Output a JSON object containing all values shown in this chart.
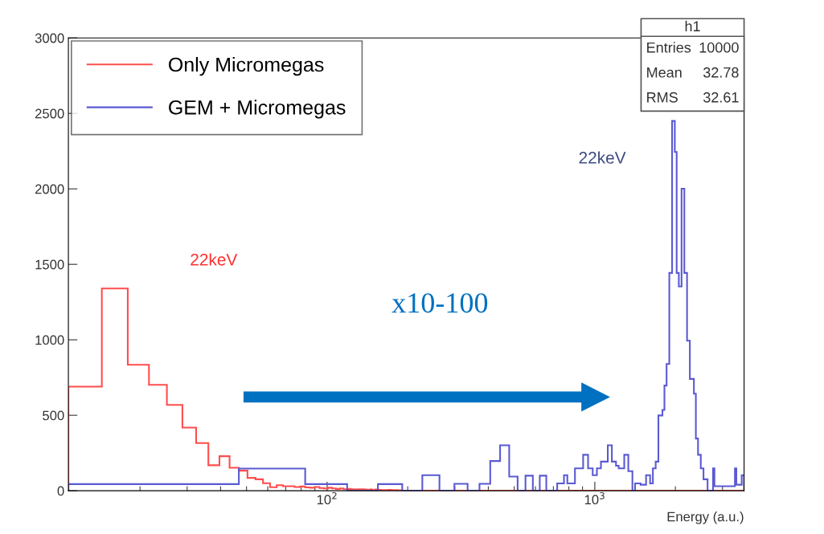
{
  "chart_data": {
    "type": "histogram",
    "xlabel": "Energy (a.u.)",
    "log": "x",
    "xlim": [
      10.8,
      3610.8
    ],
    "xticks": [
      {
        "value": 100,
        "label": "10$^{2}$"
      },
      {
        "value": 1000,
        "label": "10$^{3}$"
      }
    ],
    "ylim": [
      0,
      3000
    ],
    "yticks": [
      0,
      500,
      1000,
      1500,
      2000,
      2500,
      3000
    ],
    "grid": false,
    "legend": "top left",
    "bins": [
      10.8,
      14.4,
      18,
      21.6,
      25.2,
      28.8,
      32.4,
      36,
      39.6,
      43.2,
      46.8,
      50.4,
      54,
      57.6,
      61.2,
      64.8,
      68.4,
      72,
      75.6,
      79.2,
      82.8,
      86.4,
      90,
      93.6,
      97.2,
      100.8,
      104.4,
      108,
      111.6,
      115.2,
      118.8,
      122.4,
      126,
      129.6,
      133.2,
      136.8,
      140.4,
      144,
      147.6,
      151.2,
      154.8,
      158.4,
      162,
      165.6,
      169.2,
      172.8,
      176.4,
      180,
      183.6,
      187.2,
      190.8,
      226.8,
      262.8,
      298.8,
      334.8,
      370.8,
      406.8,
      442.8,
      478.8,
      514.8,
      550.8,
      586.8,
      622.8,
      658.8,
      723.6,
      767,
      789.6,
      843,
      904.6,
      943.6,
      982,
      1018,
      1054,
      1118,
      1158,
      1200,
      1228,
      1288,
      1334,
      1382,
      1414,
      1483,
      1554,
      1609,
      1648,
      1688,
      1728,
      1789,
      1820,
      1854,
      1898,
      1944,
      1990,
      2022,
      2060,
      2109,
      2160,
      2211,
      2265,
      2345,
      2385,
      2430,
      2488,
      2547,
      2638,
      2765,
      2798,
      3338,
      3378,
      3539,
      3610.8
    ],
    "series": [
      {
        "name": "Only Micromegas",
        "color": "#ff4d4d",
        "values": [
          690,
          1340,
          835,
          702,
          569,
          418,
          316,
          169,
          229,
          152,
          133,
          85,
          76,
          50,
          23,
          37,
          30,
          30,
          25,
          28,
          22,
          20,
          25,
          18,
          15,
          20,
          15,
          12,
          15,
          10,
          12,
          10,
          8,
          10,
          10,
          8,
          6,
          8,
          5,
          8,
          6,
          5,
          5,
          4,
          6,
          4,
          3,
          4,
          2,
          3,
          0,
          0,
          0,
          0,
          0,
          0,
          0,
          0,
          0,
          0,
          0,
          0,
          0,
          0,
          0,
          0,
          0,
          0,
          0,
          0,
          0,
          0,
          0,
          0,
          0,
          0,
          0,
          0,
          0,
          0,
          0,
          0,
          0,
          0,
          0,
          0,
          0,
          0,
          0,
          0,
          0,
          0,
          0,
          0,
          0,
          0,
          0,
          0,
          0,
          0,
          0,
          0,
          0,
          0,
          0,
          0,
          0,
          0,
          0,
          0
        ]
      },
      {
        "name": "GEM + Micromegas",
        "color": "#5a5ad2",
        "values": [
          44,
          44,
          44,
          44,
          44,
          44,
          44,
          44,
          44,
          44,
          147,
          147,
          147,
          147,
          147,
          147,
          147,
          147,
          147,
          147,
          44,
          44,
          44,
          44,
          44,
          44,
          44,
          44,
          44,
          44,
          0,
          0,
          0,
          0,
          0,
          0,
          0,
          0,
          0,
          0,
          44,
          44,
          44,
          44,
          44,
          44,
          44,
          44,
          44,
          44,
          0,
          103,
          0,
          46,
          0,
          46,
          197,
          301,
          94,
          0,
          100,
          0,
          100,
          0,
          49,
          103,
          49,
          148,
          238,
          148,
          103,
          148,
          193,
          301,
          193,
          166,
          148,
          238,
          130,
          0,
          49,
          40,
          103,
          49,
          148,
          193,
          499,
          535,
          697,
          840,
          1443,
          2450,
          2244,
          1443,
          1353,
          2001,
          1443,
          994,
          741,
          643,
          346,
          238,
          148,
          76,
          0,
          148,
          30,
          148,
          40,
          103
        ]
      }
    ],
    "annotations": [
      "22keV",
      "22keV",
      "x10-100",
      "h1",
      "Entries",
      "10000",
      "Mean",
      "32.78",
      "RMS",
      "32.61"
    ]
  }
}
